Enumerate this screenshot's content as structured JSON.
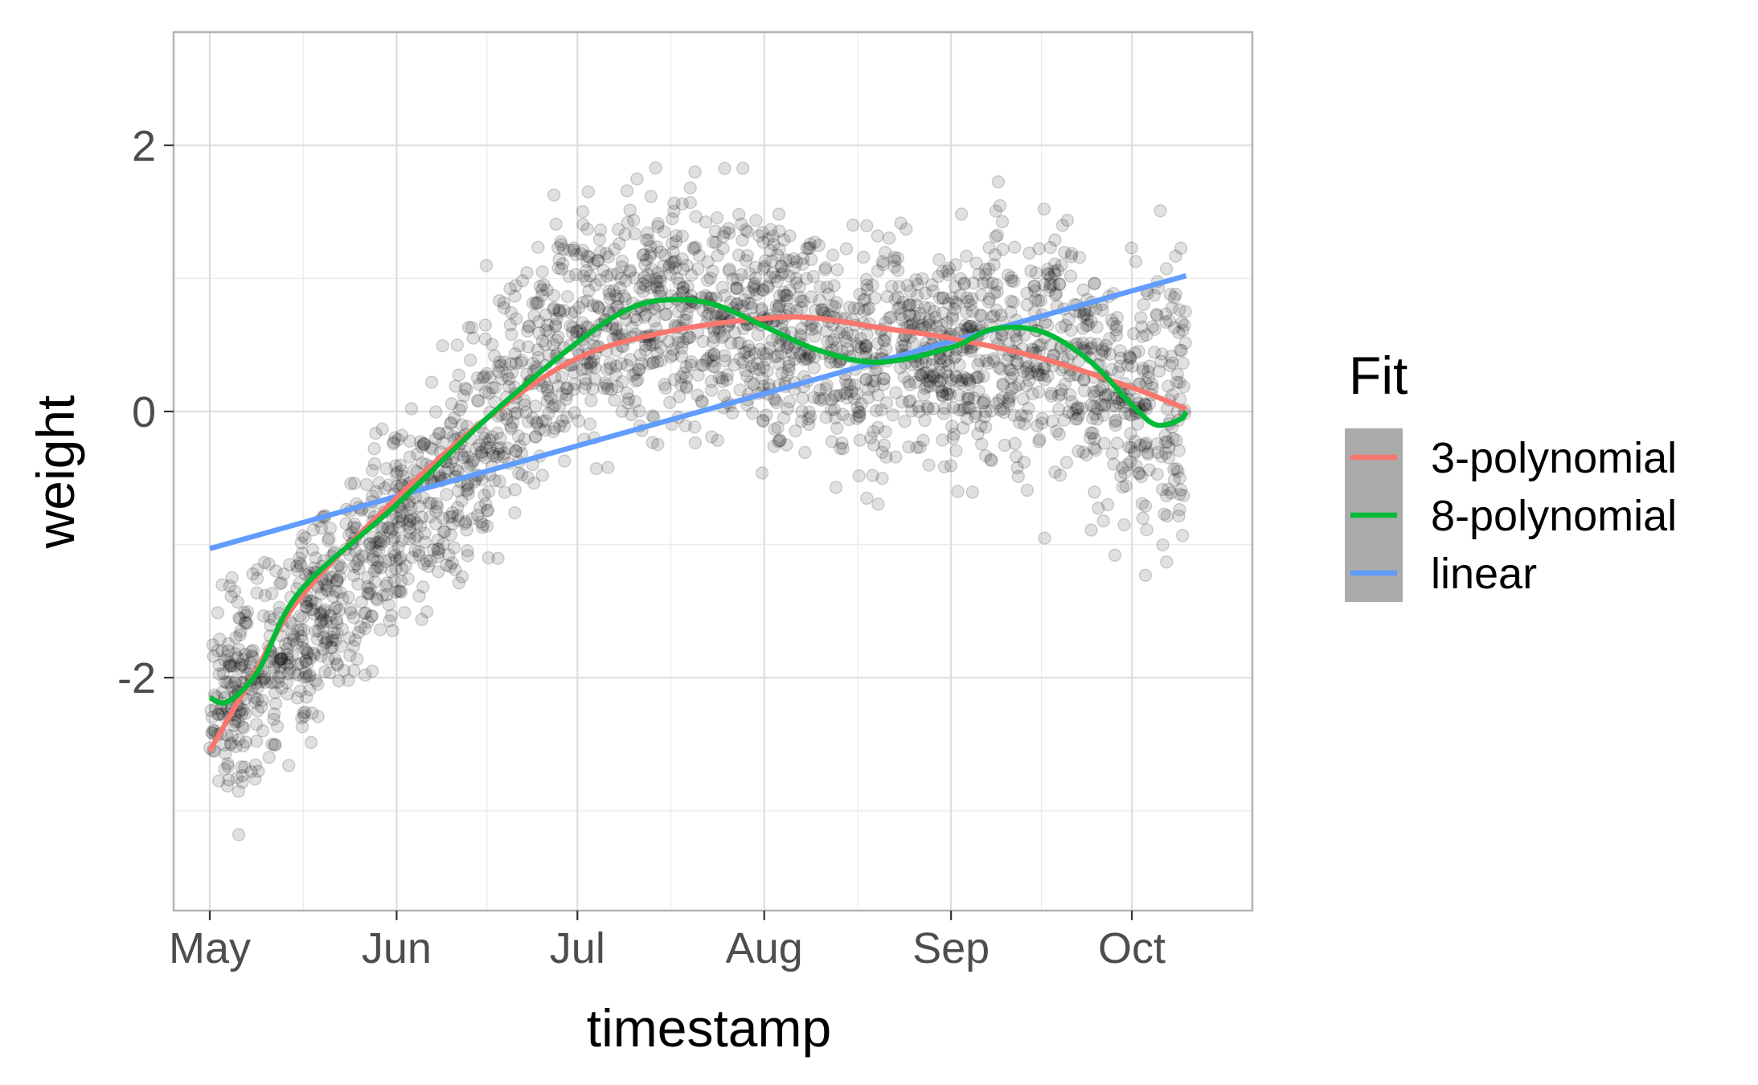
{
  "chart_data": {
    "type": "scatter",
    "title": "",
    "xlabel": "timestamp",
    "ylabel": "weight",
    "x_axis": {
      "kind": "date",
      "range": [
        "2020-04-25",
        "2020-10-21"
      ],
      "ticks": [
        {
          "value": "2020-05-01",
          "label": "May"
        },
        {
          "value": "2020-06-01",
          "label": "Jun"
        },
        {
          "value": "2020-07-01",
          "label": "Jul"
        },
        {
          "value": "2020-08-01",
          "label": "Aug"
        },
        {
          "value": "2020-09-01",
          "label": "Sep"
        },
        {
          "value": "2020-10-01",
          "label": "Oct"
        }
      ]
    },
    "y_axis": {
      "range": [
        -3.75,
        2.85
      ],
      "ticks": [
        {
          "value": -2,
          "label": "-2"
        },
        {
          "value": 0,
          "label": "0"
        },
        {
          "value": 2,
          "label": "2"
        }
      ],
      "minor": [
        -3,
        -1,
        1
      ]
    },
    "grid": true,
    "points": {
      "color": "#000000",
      "opacity": 0.12,
      "description": "dense scatter of daily weight observations from May to mid October",
      "envelope": [
        {
          "x": "2020-05-01",
          "center": -2.2,
          "spread": 0.7
        },
        {
          "x": "2020-05-16",
          "center": -1.7,
          "spread": 0.7
        },
        {
          "x": "2020-06-01",
          "center": -0.9,
          "spread": 0.8
        },
        {
          "x": "2020-06-16",
          "center": -0.2,
          "spread": 0.9
        },
        {
          "x": "2020-07-01",
          "center": 0.6,
          "spread": 0.9
        },
        {
          "x": "2020-07-16",
          "center": 0.8,
          "spread": 0.9
        },
        {
          "x": "2020-08-01",
          "center": 0.7,
          "spread": 0.8
        },
        {
          "x": "2020-08-16",
          "center": 0.4,
          "spread": 0.8
        },
        {
          "x": "2020-09-01",
          "center": 0.5,
          "spread": 0.8
        },
        {
          "x": "2020-09-16",
          "center": 0.5,
          "spread": 0.9
        },
        {
          "x": "2020-10-01",
          "center": 0.1,
          "spread": 1.0
        },
        {
          "x": "2020-10-10",
          "center": 0.0,
          "spread": 1.1
        }
      ]
    },
    "series": [
      {
        "name": "3-polynomial",
        "color": "#F8766D",
        "points": [
          {
            "x": "2020-05-01",
            "y": -2.55
          },
          {
            "x": "2020-05-08",
            "y": -2.0
          },
          {
            "x": "2020-05-16",
            "y": -1.4
          },
          {
            "x": "2020-06-01",
            "y": -0.65
          },
          {
            "x": "2020-06-16",
            "y": -0.05
          },
          {
            "x": "2020-07-01",
            "y": 0.4
          },
          {
            "x": "2020-07-16",
            "y": 0.6
          },
          {
            "x": "2020-08-01",
            "y": 0.7
          },
          {
            "x": "2020-08-10",
            "y": 0.7
          },
          {
            "x": "2020-08-20",
            "y": 0.63
          },
          {
            "x": "2020-09-01",
            "y": 0.55
          },
          {
            "x": "2020-09-16",
            "y": 0.4
          },
          {
            "x": "2020-10-01",
            "y": 0.18
          },
          {
            "x": "2020-10-10",
            "y": 0.02
          }
        ]
      },
      {
        "name": "8-polynomial",
        "color": "#00BA38",
        "points": [
          {
            "x": "2020-05-01",
            "y": -2.15
          },
          {
            "x": "2020-05-04",
            "y": -2.18
          },
          {
            "x": "2020-05-09",
            "y": -1.95
          },
          {
            "x": "2020-05-16",
            "y": -1.35
          },
          {
            "x": "2020-06-01",
            "y": -0.7
          },
          {
            "x": "2020-06-16",
            "y": -0.05
          },
          {
            "x": "2020-07-01",
            "y": 0.52
          },
          {
            "x": "2020-07-10",
            "y": 0.78
          },
          {
            "x": "2020-07-17",
            "y": 0.84
          },
          {
            "x": "2020-07-24",
            "y": 0.8
          },
          {
            "x": "2020-08-01",
            "y": 0.64
          },
          {
            "x": "2020-08-10",
            "y": 0.46
          },
          {
            "x": "2020-08-20",
            "y": 0.37
          },
          {
            "x": "2020-09-01",
            "y": 0.48
          },
          {
            "x": "2020-09-08",
            "y": 0.62
          },
          {
            "x": "2020-09-16",
            "y": 0.6
          },
          {
            "x": "2020-09-24",
            "y": 0.38
          },
          {
            "x": "2020-10-01",
            "y": 0.05
          },
          {
            "x": "2020-10-05",
            "y": -0.1
          },
          {
            "x": "2020-10-09",
            "y": -0.06
          },
          {
            "x": "2020-10-10",
            "y": 0.0
          }
        ]
      },
      {
        "name": "linear",
        "color": "#619CFF",
        "points": [
          {
            "x": "2020-05-01",
            "y": -1.03
          },
          {
            "x": "2020-10-10",
            "y": 1.02
          }
        ]
      }
    ],
    "legend": {
      "title": "Fit",
      "placement": "right",
      "key_background": "#ABABAB"
    }
  }
}
